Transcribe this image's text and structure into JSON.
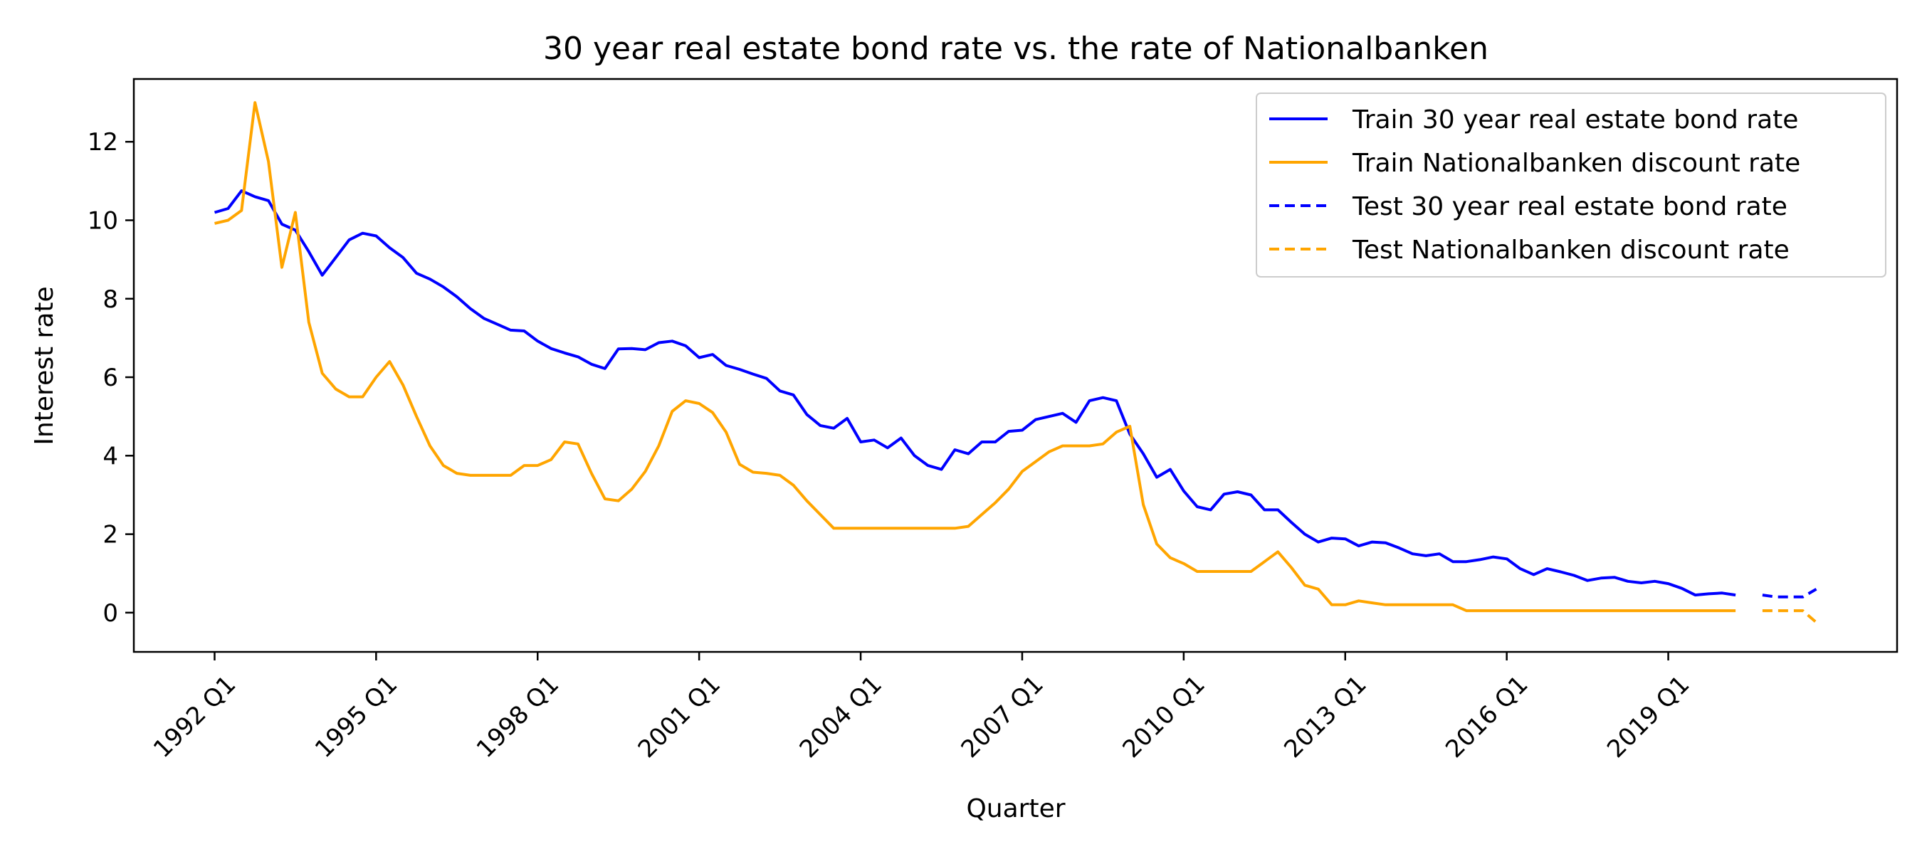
{
  "chart_data": {
    "type": "line",
    "title": "30 year real estate bond rate vs. the rate of Nationalbanken",
    "xlabel": "Quarter",
    "ylabel": "Interest rate",
    "ylim": [
      -1.0,
      13.6
    ],
    "yticks": [
      0,
      2,
      4,
      6,
      8,
      10,
      12
    ],
    "xlim": [
      "1990 Q3",
      "2023 Q2"
    ],
    "xticks": [
      "1992 Q1",
      "1995 Q1",
      "1998 Q1",
      "2001 Q1",
      "2004 Q1",
      "2007 Q1",
      "2010 Q1",
      "2013 Q1",
      "2016 Q1",
      "2019 Q1"
    ],
    "legend_position": "top-right",
    "grid": false,
    "series": [
      {
        "name": "Train 30 year real estate bond rate",
        "color": "#0000ff",
        "style": "solid",
        "start": "1992 Q1",
        "values": [
          10.2,
          10.3,
          10.75,
          10.6,
          10.5,
          9.9,
          9.75,
          9.2,
          8.6,
          9.05,
          9.5,
          9.67,
          9.6,
          9.3,
          9.05,
          8.65,
          8.5,
          8.3,
          8.05,
          7.75,
          7.5,
          7.35,
          7.2,
          7.18,
          6.92,
          6.73,
          6.62,
          6.52,
          6.33,
          6.22,
          6.72,
          6.73,
          6.7,
          6.88,
          6.92,
          6.8,
          6.5,
          6.58,
          6.3,
          6.2,
          6.08,
          5.97,
          5.65,
          5.55,
          5.05,
          4.77,
          4.7,
          4.95,
          4.35,
          4.4,
          4.2,
          4.45,
          4.0,
          3.75,
          3.65,
          4.15,
          4.05,
          4.35,
          4.35,
          4.62,
          4.65,
          4.92,
          5.0,
          5.08,
          4.85,
          5.4,
          5.48,
          5.4,
          4.55,
          4.05,
          3.45,
          3.65,
          3.1,
          2.7,
          2.62,
          3.02,
          3.08,
          3.0,
          2.62,
          2.62,
          2.3,
          2.0,
          1.8,
          1.9,
          1.88,
          1.7,
          1.8,
          1.78,
          1.65,
          1.5,
          1.45,
          1.5,
          1.3,
          1.3,
          1.35,
          1.42,
          1.37,
          1.12,
          0.97,
          1.12,
          1.04,
          0.95,
          0.82,
          0.88,
          0.9,
          0.8,
          0.76,
          0.8,
          0.74,
          0.62,
          0.45,
          0.48,
          0.5,
          0.45
        ]
      },
      {
        "name": "Train Nationalbanken discount rate",
        "color": "#ffa500",
        "style": "solid",
        "start": "1992 Q1",
        "values": [
          9.92,
          10.0,
          10.25,
          13.0,
          11.5,
          8.8,
          10.2,
          7.4,
          6.1,
          5.7,
          5.5,
          5.5,
          6.0,
          6.4,
          5.8,
          5.0,
          4.25,
          3.75,
          3.55,
          3.5,
          3.5,
          3.5,
          3.5,
          3.75,
          3.75,
          3.9,
          4.35,
          4.3,
          3.55,
          2.9,
          2.85,
          3.15,
          3.6,
          4.25,
          5.13,
          5.4,
          5.33,
          5.1,
          4.6,
          3.78,
          3.58,
          3.55,
          3.5,
          3.25,
          2.85,
          2.5,
          2.15,
          2.15,
          2.15,
          2.15,
          2.15,
          2.15,
          2.15,
          2.15,
          2.15,
          2.15,
          2.2,
          2.5,
          2.8,
          3.15,
          3.6,
          3.85,
          4.1,
          4.25,
          4.25,
          4.25,
          4.3,
          4.6,
          4.75,
          2.75,
          1.75,
          1.4,
          1.25,
          1.05,
          1.05,
          1.05,
          1.05,
          1.05,
          1.3,
          1.55,
          1.15,
          0.7,
          0.6,
          0.2,
          0.2,
          0.3,
          0.25,
          0.2,
          0.2,
          0.2,
          0.2,
          0.2,
          0.2,
          0.05,
          0.05,
          0.05,
          0.05,
          0.05,
          0.05,
          0.05,
          0.05,
          0.05,
          0.05,
          0.05,
          0.05,
          0.05,
          0.05,
          0.05,
          0.05,
          0.05,
          0.05,
          0.05,
          0.05,
          0.05
        ]
      },
      {
        "name": "Test 30 year real estate bond rate",
        "color": "#0000ff",
        "style": "dashed",
        "start": "2020 Q4",
        "values": [
          0.45,
          0.4,
          0.4,
          0.4,
          0.6
        ]
      },
      {
        "name": "Test Nationalbanken discount rate",
        "color": "#ffa500",
        "style": "dashed",
        "start": "2020 Q4",
        "values": [
          0.05,
          0.05,
          0.05,
          0.05,
          -0.25
        ]
      }
    ]
  }
}
